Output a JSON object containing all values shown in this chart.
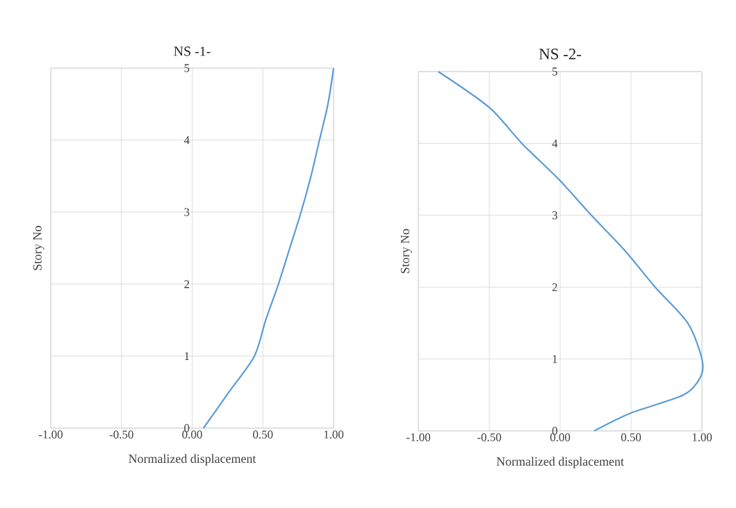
{
  "chart_data": [
    {
      "type": "line",
      "title": "NS -1-",
      "xlabel": "Normalized displacement",
      "ylabel": "Story No",
      "xlim": [
        -1,
        1
      ],
      "ylim": [
        0,
        5
      ],
      "xticks": [
        {
          "value": -1,
          "label": "-1.00"
        },
        {
          "value": -0.5,
          "label": "-0.50"
        },
        {
          "value": 0,
          "label": "0.00"
        },
        {
          "value": 0.5,
          "label": "0.50"
        },
        {
          "value": 1,
          "label": "1.00"
        }
      ],
      "yticks": [
        0,
        1,
        2,
        3,
        4,
        5
      ],
      "grid": true,
      "series": [
        {
          "color": "#5b9bd5",
          "x": [
            0.08,
            0.26,
            0.44,
            0.52,
            0.61,
            0.69,
            0.77,
            0.84,
            0.9,
            0.96,
            1.0
          ],
          "values": [
            0,
            0.5,
            1,
            1.5,
            2,
            2.5,
            3,
            3.5,
            4,
            4.5,
            5
          ]
        }
      ]
    },
    {
      "type": "line",
      "title": "NS -2-",
      "xlabel": "Normalized displacement",
      "ylabel": "Story No",
      "xlim": [
        -1,
        1
      ],
      "ylim": [
        0,
        5
      ],
      "xticks": [
        {
          "value": -1,
          "label": "-1.00"
        },
        {
          "value": -0.5,
          "label": "-0.50"
        },
        {
          "value": 0,
          "label": "0.00"
        },
        {
          "value": 0.5,
          "label": "0.50"
        },
        {
          "value": 1,
          "label": "1.00"
        }
      ],
      "yticks": [
        0,
        1,
        2,
        3,
        4,
        5
      ],
      "grid": true,
      "series": [
        {
          "color": "#5b9bd5",
          "x": [
            0.24,
            0.5,
            0.87,
            0.99,
            1.0,
            0.9,
            0.67,
            0.46,
            0.22,
            -0.01,
            -0.27,
            -0.5,
            -0.86
          ],
          "values": [
            0,
            0.25,
            0.5,
            0.75,
            1,
            1.5,
            2,
            2.5,
            3,
            3.5,
            4,
            4.5,
            5
          ]
        }
      ]
    }
  ]
}
